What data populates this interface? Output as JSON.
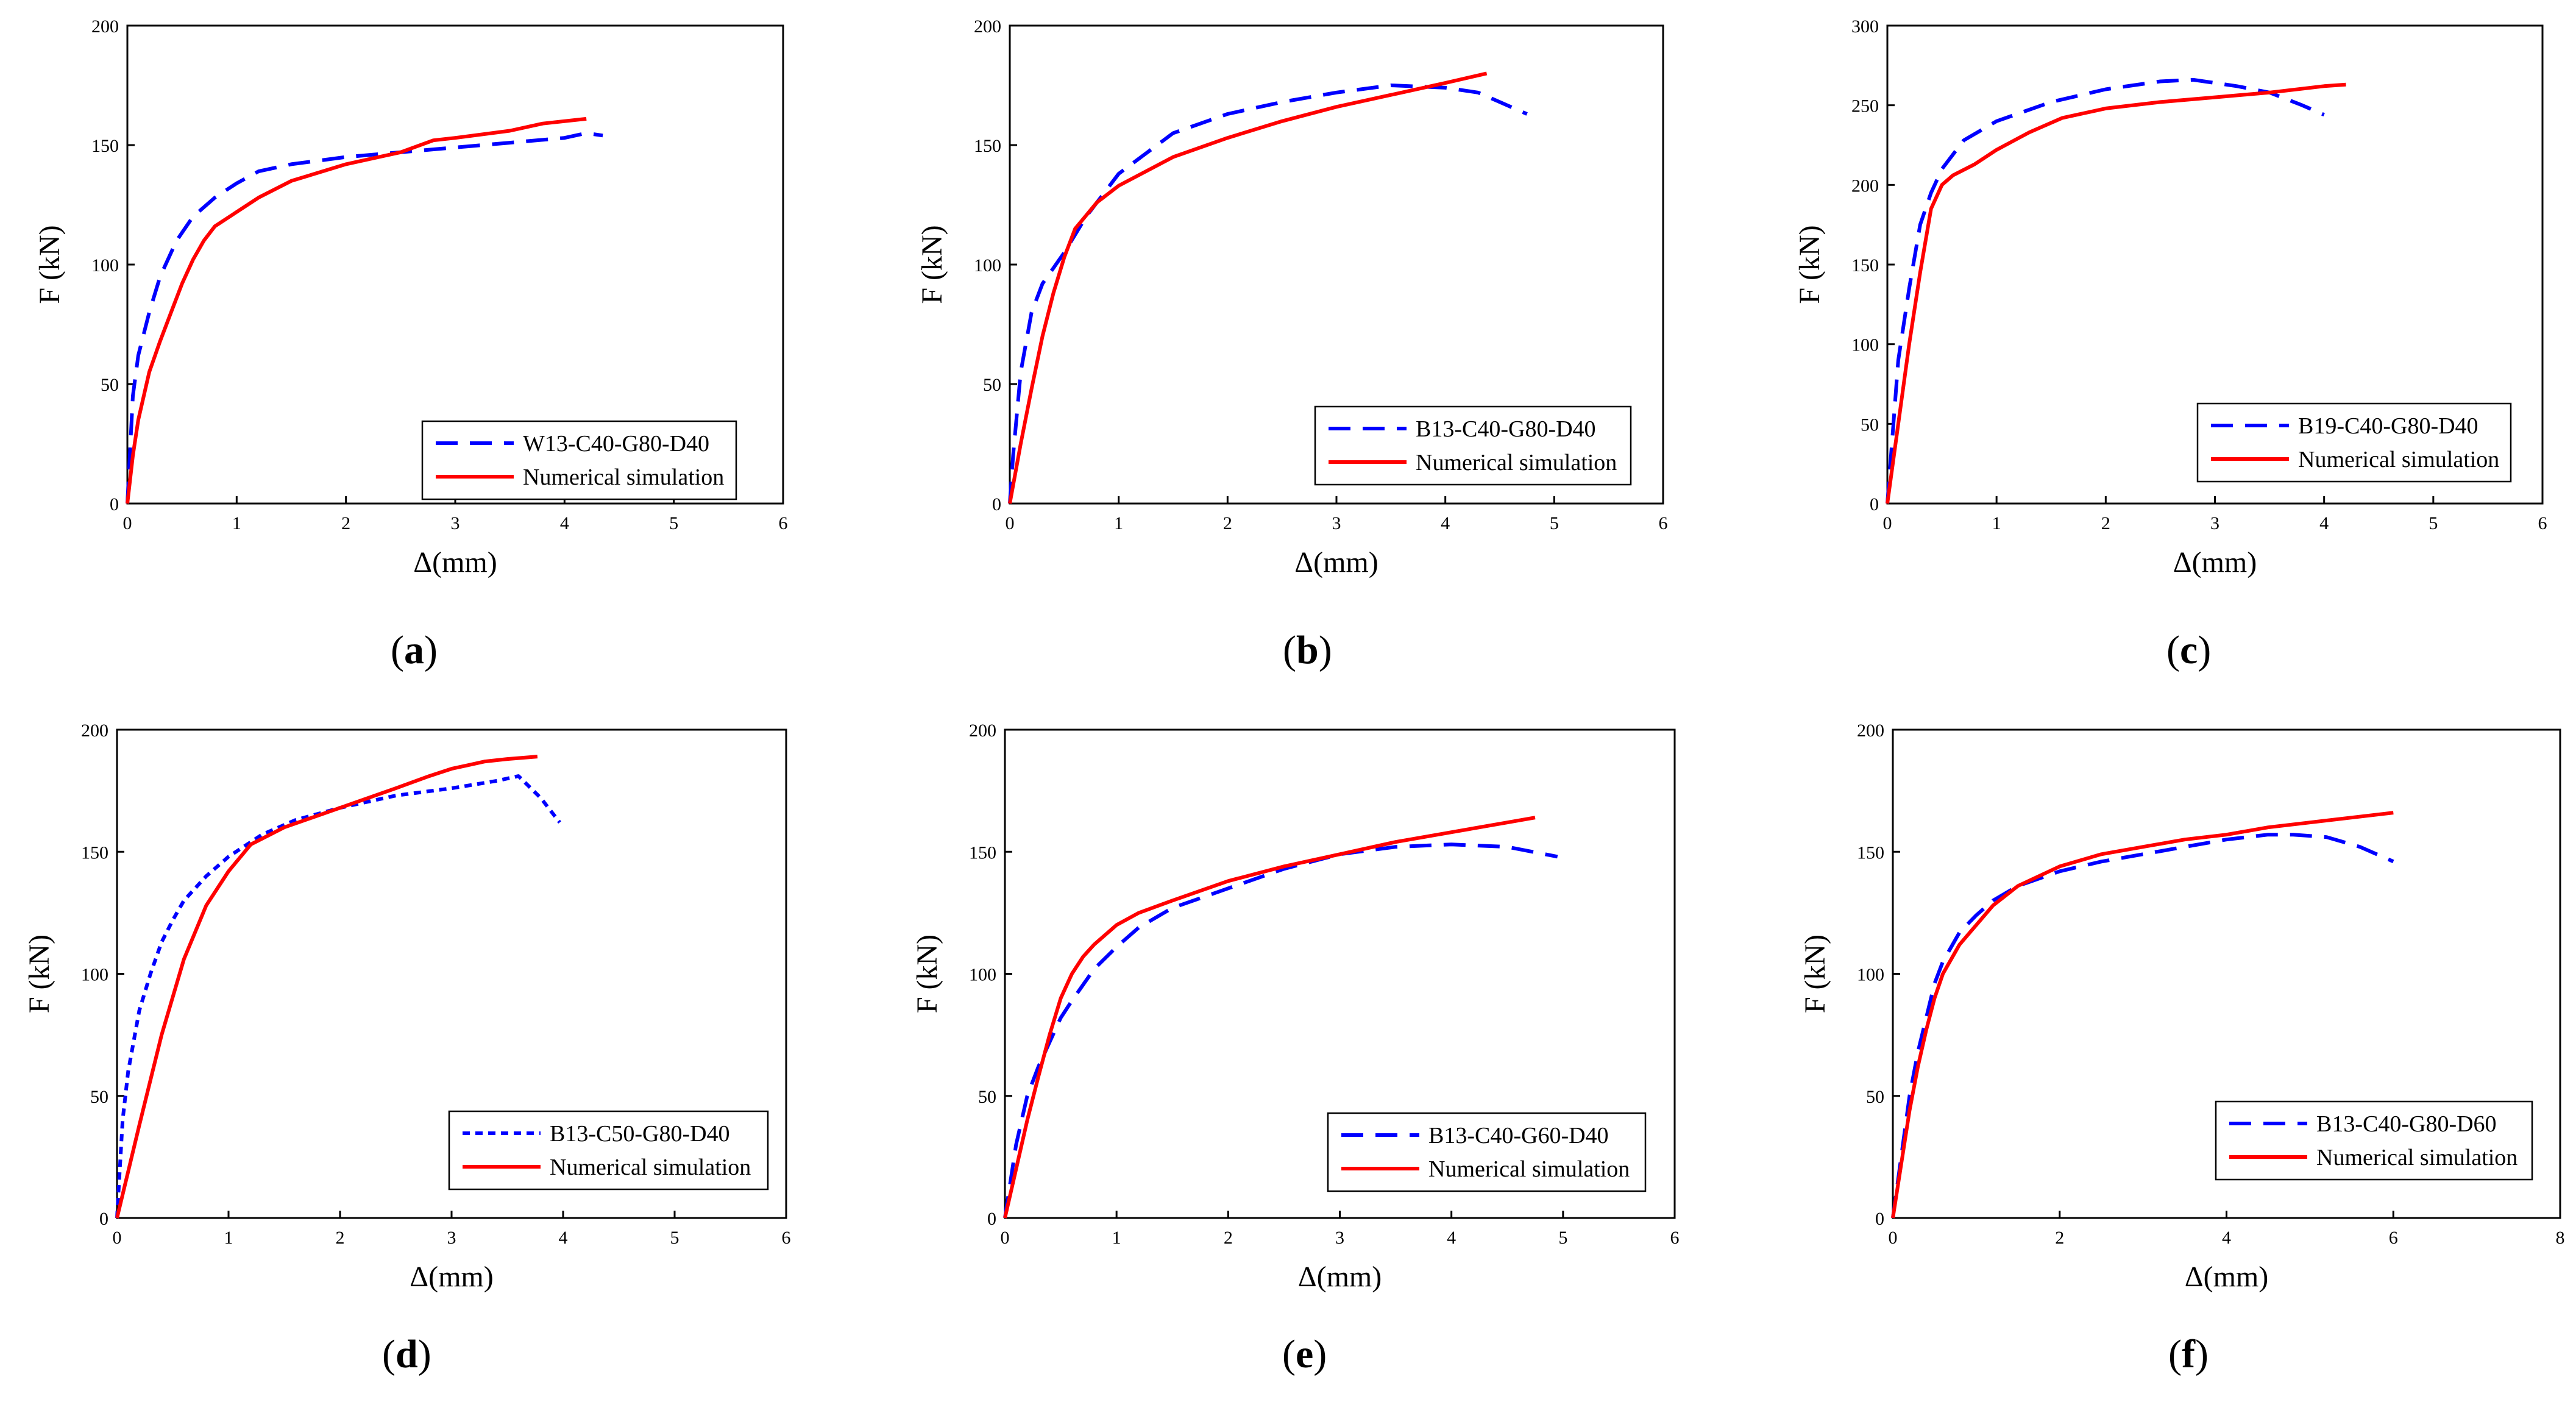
{
  "colors": {
    "experiment": "#0000ff",
    "simulation": "#ff0000",
    "axis": "#000000"
  },
  "chart_data": [
    {
      "type": "line",
      "panel": "(a)",
      "panel_letter": "a",
      "xlabel": "Δ(mm)",
      "ylabel": "F (kN)",
      "xlim": [
        0,
        6
      ],
      "ylim": [
        0,
        200
      ],
      "xticks": [
        0,
        1,
        2,
        3,
        4,
        5,
        6
      ],
      "yticks": [
        0,
        50,
        100,
        150,
        200
      ],
      "legend_position": "bottom-right",
      "grid": false,
      "series": [
        {
          "name": "W13-C40-G80-D40",
          "style": "dashed",
          "color": "#0000ff",
          "x": [
            0,
            0.05,
            0.1,
            0.2,
            0.3,
            0.45,
            0.6,
            0.8,
            1.0,
            1.2,
            1.5,
            2.0,
            2.5,
            3.0,
            3.5,
            4.0,
            4.2,
            4.35
          ],
          "y": [
            0,
            45,
            62,
            80,
            95,
            110,
            120,
            128,
            134,
            139,
            142,
            145,
            147,
            149,
            151,
            153,
            155,
            154
          ]
        },
        {
          "name": "Numerical simulation",
          "style": "solid",
          "color": "#ff0000",
          "x": [
            0,
            0.05,
            0.1,
            0.2,
            0.3,
            0.4,
            0.5,
            0.6,
            0.7,
            0.8,
            1.0,
            1.2,
            1.5,
            2.0,
            2.5,
            2.8,
            3.0,
            3.5,
            3.8,
            4.2
          ],
          "y": [
            0,
            20,
            35,
            55,
            68,
            80,
            92,
            102,
            110,
            116,
            122,
            128,
            135,
            142,
            147,
            152,
            153,
            156,
            159,
            161
          ]
        }
      ]
    },
    {
      "type": "line",
      "panel": "(b)",
      "panel_letter": "b",
      "xlabel": "Δ(mm)",
      "ylabel": "F (kN)",
      "xlim": [
        0,
        6
      ],
      "ylim": [
        0,
        200
      ],
      "xticks": [
        0,
        1,
        2,
        3,
        4,
        5,
        6
      ],
      "yticks": [
        0,
        50,
        100,
        150,
        200
      ],
      "legend_position": "bottom-right",
      "grid": false,
      "series": [
        {
          "name": "B13-C40-G80-D40",
          "style": "dashed",
          "color": "#0000ff",
          "x": [
            0,
            0.03,
            0.1,
            0.2,
            0.3,
            0.5,
            0.7,
            1.0,
            1.5,
            2.0,
            2.5,
            3.0,
            3.5,
            4.0,
            4.3,
            4.5,
            4.75
          ],
          "y": [
            0,
            20,
            55,
            80,
            92,
            105,
            120,
            138,
            155,
            163,
            168,
            172,
            175,
            174,
            172,
            168,
            163
          ]
        },
        {
          "name": "Numerical simulation",
          "style": "solid",
          "color": "#ff0000",
          "x": [
            0,
            0.1,
            0.2,
            0.3,
            0.4,
            0.5,
            0.6,
            0.8,
            1.0,
            1.5,
            2.0,
            2.5,
            3.0,
            3.5,
            4.0,
            4.38
          ],
          "y": [
            0,
            25,
            48,
            70,
            88,
            103,
            115,
            126,
            133,
            145,
            153,
            160,
            166,
            171,
            176,
            180
          ]
        }
      ]
    },
    {
      "type": "line",
      "panel": "(c)",
      "panel_letter": "c",
      "xlabel": "Δ(mm)",
      "ylabel": "F (kN)",
      "xlim": [
        0,
        6
      ],
      "ylim": [
        0,
        300
      ],
      "xticks": [
        0,
        1,
        2,
        3,
        4,
        5,
        6
      ],
      "yticks": [
        0,
        50,
        100,
        150,
        200,
        250,
        300
      ],
      "legend_position": "bottom-right",
      "grid": false,
      "series": [
        {
          "name": "B19-C40-G80-D40",
          "style": "dashed",
          "color": "#0000ff",
          "x": [
            0,
            0.1,
            0.2,
            0.3,
            0.4,
            0.5,
            0.7,
            1.0,
            1.5,
            2.0,
            2.5,
            2.8,
            3.2,
            3.5,
            3.8,
            4.0
          ],
          "y": [
            0,
            90,
            135,
            175,
            195,
            210,
            228,
            240,
            252,
            260,
            265,
            266,
            262,
            258,
            250,
            244
          ]
        },
        {
          "name": "Numerical simulation",
          "style": "solid",
          "color": "#ff0000",
          "x": [
            0,
            0.1,
            0.2,
            0.3,
            0.4,
            0.5,
            0.6,
            0.8,
            1.0,
            1.3,
            1.6,
            2.0,
            2.5,
            3.0,
            3.5,
            4.0,
            4.2
          ],
          "y": [
            0,
            50,
            100,
            145,
            185,
            200,
            206,
            213,
            222,
            233,
            242,
            248,
            252,
            255,
            258,
            262,
            263
          ]
        }
      ]
    },
    {
      "type": "line",
      "panel": "(d)",
      "panel_letter": "d",
      "xlabel": "Δ(mm)",
      "ylabel": "F (kN)",
      "xlim": [
        0,
        6
      ],
      "ylim": [
        0,
        200
      ],
      "xticks": [
        0,
        1,
        2,
        3,
        4,
        5,
        6
      ],
      "yticks": [
        0,
        50,
        100,
        150,
        200
      ],
      "legend_position": "bottom-right",
      "grid": false,
      "series": [
        {
          "name": "B13-C50-G80-D40",
          "style": "dotted",
          "color": "#0000ff",
          "x": [
            0,
            0.05,
            0.1,
            0.2,
            0.3,
            0.4,
            0.5,
            0.6,
            0.8,
            1.0,
            1.3,
            1.6,
            2.0,
            2.5,
            3.0,
            3.4,
            3.6,
            3.8,
            3.97
          ],
          "y": [
            0,
            40,
            60,
            85,
            100,
            113,
            122,
            130,
            140,
            148,
            157,
            163,
            168,
            173,
            176,
            179,
            181,
            172,
            162
          ]
        },
        {
          "name": "Numerical simulation",
          "style": "solid",
          "color": "#ff0000",
          "x": [
            0,
            0.2,
            0.4,
            0.6,
            0.8,
            1.0,
            1.2,
            1.5,
            2.0,
            2.5,
            2.8,
            3.0,
            3.3,
            3.5,
            3.77
          ],
          "y": [
            0,
            38,
            75,
            106,
            128,
            142,
            153,
            160,
            168,
            176,
            181,
            184,
            187,
            188,
            189
          ]
        }
      ]
    },
    {
      "type": "line",
      "panel": "(e)",
      "panel_letter": "e",
      "xlabel": "Δ(mm)",
      "ylabel": "F (kN)",
      "xlim": [
        0,
        6
      ],
      "ylim": [
        0,
        200
      ],
      "xticks": [
        0,
        1,
        2,
        3,
        4,
        5,
        6
      ],
      "yticks": [
        0,
        50,
        100,
        150,
        200
      ],
      "legend_position": "bottom-right",
      "grid": false,
      "series": [
        {
          "name": "B13-C40-G60-D40",
          "style": "dashed",
          "color": "#0000ff",
          "x": [
            0,
            0.1,
            0.2,
            0.3,
            0.4,
            0.5,
            0.6,
            0.8,
            1.0,
            1.2,
            1.5,
            2.0,
            2.5,
            3.0,
            3.5,
            4.0,
            4.5,
            4.95
          ],
          "y": [
            0,
            30,
            50,
            62,
            72,
            82,
            89,
            102,
            111,
            119,
            127,
            135,
            143,
            149,
            152,
            153,
            152,
            148
          ]
        },
        {
          "name": "Numerical simulation",
          "style": "solid",
          "color": "#ff0000",
          "x": [
            0,
            0.1,
            0.2,
            0.3,
            0.4,
            0.5,
            0.6,
            0.7,
            0.8,
            1.0,
            1.2,
            1.5,
            2.0,
            2.5,
            3.0,
            3.5,
            4.0,
            4.5,
            4.75
          ],
          "y": [
            0,
            20,
            40,
            58,
            75,
            90,
            100,
            107,
            112,
            120,
            125,
            130,
            138,
            144,
            149,
            154,
            158,
            162,
            164
          ]
        }
      ]
    },
    {
      "type": "line",
      "panel": "(f)",
      "panel_letter": "f",
      "xlabel": "Δ(mm)",
      "ylabel": "F (kN)",
      "xlim": [
        0,
        8
      ],
      "ylim": [
        0,
        200
      ],
      "xticks": [
        0,
        2,
        4,
        6,
        8
      ],
      "yticks": [
        0,
        50,
        100,
        150,
        200
      ],
      "legend_position": "bottom-right",
      "grid": false,
      "series": [
        {
          "name": "B13-C40-G80-D60",
          "style": "dashed",
          "color": "#0000ff",
          "x": [
            0,
            0.1,
            0.2,
            0.3,
            0.4,
            0.5,
            0.6,
            0.8,
            1.0,
            1.2,
            1.5,
            2.0,
            2.5,
            3.0,
            3.5,
            4.0,
            4.5,
            4.8,
            5.2,
            5.6,
            6.0
          ],
          "y": [
            0,
            25,
            50,
            68,
            82,
            96,
            105,
            117,
            124,
            130,
            136,
            142,
            146,
            149,
            152,
            155,
            157,
            157,
            156,
            152,
            146
          ]
        },
        {
          "name": "Numerical simulation",
          "style": "solid",
          "color": "#ff0000",
          "x": [
            0,
            0.1,
            0.2,
            0.3,
            0.4,
            0.5,
            0.6,
            0.8,
            1.0,
            1.2,
            1.5,
            2.0,
            2.5,
            3.0,
            3.5,
            4.0,
            4.5,
            5.0,
            5.5,
            6.0
          ],
          "y": [
            0,
            22,
            44,
            62,
            77,
            90,
            100,
            112,
            120,
            128,
            136,
            144,
            149,
            152,
            155,
            157,
            160,
            162,
            164,
            166
          ]
        }
      ]
    }
  ]
}
